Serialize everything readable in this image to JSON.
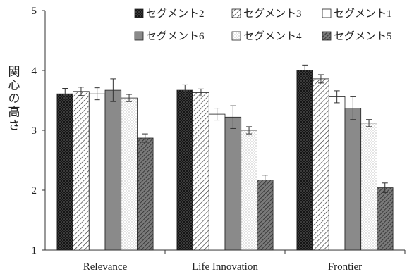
{
  "chart_data": {
    "type": "bar",
    "ylabel": "関心の高さ",
    "ylim": [
      1,
      5
    ],
    "yticks": [
      1,
      2,
      3,
      4,
      5
    ],
    "grid": false,
    "legend_position": "top",
    "categories": [
      "Relevance",
      "Life Innovation",
      "Frontier"
    ],
    "series": [
      {
        "name": "セグメント2",
        "pattern": "dark-dots",
        "values": [
          3.61,
          3.67,
          4.0
        ],
        "errors": [
          0.09,
          0.09,
          0.09
        ]
      },
      {
        "name": "セグメント3",
        "pattern": "diagonal-hatch",
        "values": [
          3.65,
          3.63,
          3.86
        ],
        "errors": [
          0.07,
          0.06,
          0.07
        ]
      },
      {
        "name": "セグメント1",
        "pattern": "white",
        "values": [
          3.61,
          3.27,
          3.56
        ],
        "errors": [
          0.1,
          0.1,
          0.1
        ]
      },
      {
        "name": "セグメント6",
        "pattern": "gray",
        "values": [
          3.67,
          3.22,
          3.37
        ],
        "errors": [
          0.19,
          0.19,
          0.19
        ]
      },
      {
        "name": "セグメント4",
        "pattern": "light-dots",
        "values": [
          3.54,
          3.0,
          3.12
        ],
        "errors": [
          0.06,
          0.06,
          0.06
        ]
      },
      {
        "name": "セグメント5",
        "pattern": "dense-hatch",
        "values": [
          2.87,
          2.17,
          2.04
        ],
        "errors": [
          0.07,
          0.08,
          0.08
        ]
      }
    ]
  }
}
